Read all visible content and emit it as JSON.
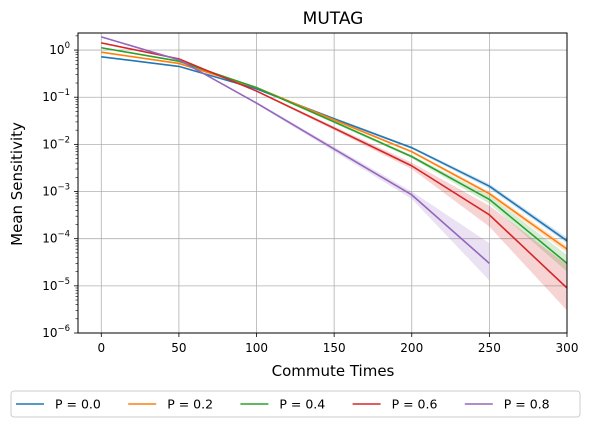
{
  "chart_data": {
    "type": "line",
    "title": "MUTAG",
    "xlabel": "Commute Times",
    "ylabel": "Mean Sensitivity",
    "xlim": [
      -15,
      300
    ],
    "ylim": [
      1e-06,
      2.3
    ],
    "yscale": "log",
    "grid": true,
    "legend_position": "bottom (outside)",
    "x_ticks": [
      0,
      50,
      100,
      150,
      200,
      250,
      300
    ],
    "x_tick_labels": [
      "0",
      "50",
      "100",
      "150",
      "200",
      "250",
      "300"
    ],
    "y_ticks": [
      1e-06,
      1e-05,
      0.0001,
      0.001,
      0.01,
      0.1,
      1
    ],
    "y_tick_labels": [
      {
        "base": "10",
        "exp": "−6"
      },
      {
        "base": "10",
        "exp": "−5"
      },
      {
        "base": "10",
        "exp": "−4"
      },
      {
        "base": "10",
        "exp": "−3"
      },
      {
        "base": "10",
        "exp": "−2"
      },
      {
        "base": "10",
        "exp": "−1"
      },
      {
        "base": "10",
        "exp": "0"
      }
    ],
    "series": [
      {
        "name": "P = 0.0",
        "color": "#1f77b4",
        "x": [
          0,
          50,
          100,
          150,
          200,
          250,
          300
        ],
        "y": [
          0.72,
          0.45,
          0.15,
          0.035,
          0.0085,
          0.0013,
          9e-05
        ],
        "y_lower": [
          0.7,
          0.44,
          0.145,
          0.033,
          0.008,
          0.00115,
          8e-05
        ],
        "y_upper": [
          0.74,
          0.46,
          0.155,
          0.037,
          0.009,
          0.00145,
          0.000105
        ]
      },
      {
        "name": "P = 0.2",
        "color": "#ff7f0e",
        "x": [
          0,
          50,
          100,
          150,
          200,
          250,
          300
        ],
        "y": [
          0.9,
          0.52,
          0.16,
          0.033,
          0.007,
          0.0009,
          6e-05
        ],
        "y_lower": [
          0.88,
          0.51,
          0.155,
          0.031,
          0.0066,
          0.0008,
          5e-05
        ],
        "y_upper": [
          0.92,
          0.53,
          0.165,
          0.035,
          0.0074,
          0.001,
          7e-05
        ]
      },
      {
        "name": "P = 0.4",
        "color": "#2ca02c",
        "x": [
          0,
          50,
          100,
          150,
          200,
          250,
          300
        ],
        "y": [
          1.12,
          0.58,
          0.16,
          0.03,
          0.0055,
          0.00068,
          3e-05
        ],
        "y_lower": [
          1.09,
          0.57,
          0.155,
          0.028,
          0.0051,
          0.00055,
          2e-05
        ],
        "y_upper": [
          1.15,
          0.59,
          0.165,
          0.032,
          0.0059,
          0.00082,
          4.5e-05
        ]
      },
      {
        "name": "P = 0.6",
        "color": "#d62728",
        "x": [
          0,
          50,
          100,
          150,
          200,
          250,
          300
        ],
        "y": [
          1.42,
          0.65,
          0.135,
          0.022,
          0.0035,
          0.00032,
          9e-06
        ],
        "y_lower": [
          1.38,
          0.63,
          0.13,
          0.02,
          0.003,
          0.00018,
          3e-06
        ],
        "y_upper": [
          1.46,
          0.67,
          0.14,
          0.024,
          0.0041,
          0.0005,
          2.8e-05
        ]
      },
      {
        "name": "P = 0.8",
        "color": "#9467bd",
        "x": [
          0,
          50,
          100,
          200,
          250
        ],
        "y": [
          1.9,
          0.62,
          0.075,
          0.00085,
          3e-05
        ],
        "y_lower": [
          1.85,
          0.6,
          0.071,
          0.0007,
          1.3e-05
        ],
        "y_upper": [
          1.95,
          0.64,
          0.079,
          0.001,
          8e-05
        ]
      }
    ]
  }
}
